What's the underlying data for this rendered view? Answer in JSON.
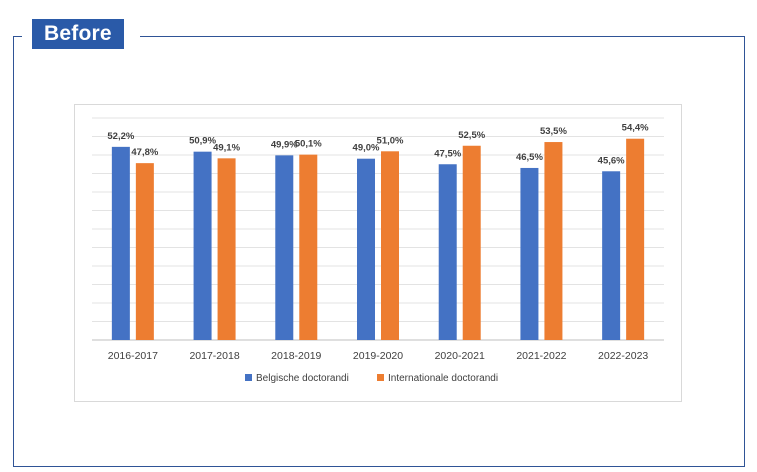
{
  "header": {
    "badge_label": "Before"
  },
  "chart_data": {
    "type": "bar",
    "title": "",
    "xlabel": "",
    "ylabel": "",
    "ylim": [
      0,
      60
    ],
    "grid": true,
    "legend_position": "bottom",
    "categories": [
      "2016-2017",
      "2017-2018",
      "2018-2019",
      "2019-2020",
      "2020-2021",
      "2021-2022",
      "2022-2023"
    ],
    "series": [
      {
        "name": "Belgische doctorandi",
        "color": "#4472c4",
        "values": [
          52.2,
          50.9,
          49.9,
          49.0,
          47.5,
          46.5,
          45.6
        ],
        "labels": [
          "52,2%",
          "50,9%",
          "49,9%",
          "49,0%",
          "47,5%",
          "46,5%",
          "45,6%"
        ]
      },
      {
        "name": "Internationale doctorandi",
        "color": "#ed7d31",
        "values": [
          47.8,
          49.1,
          50.1,
          51.0,
          52.5,
          53.5,
          54.4
        ],
        "labels": [
          "47,8%",
          "49,1%",
          "50,1%",
          "51,0%",
          "52,5%",
          "53,5%",
          "54,4%"
        ]
      }
    ]
  }
}
